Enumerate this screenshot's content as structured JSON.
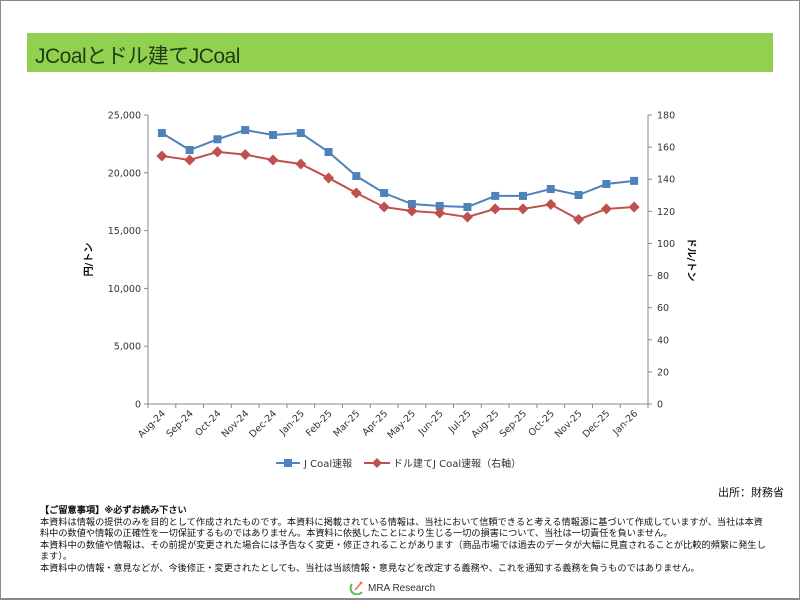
{
  "page": {
    "title": "JCoalとドル建てJCoal",
    "source": "出所：財務省",
    "notes": {
      "heading": "【ご留意事項】※必ずお読み下さい",
      "lines": [
        "本資料は情報の提供のみを目的として作成されたものです。本資料に掲載されている情報は、当社において信頼できると考える情報源に基づいて作成していますが、当社は本資料中の数値や情報の正確性を一切保証するものではありません。本資料に依拠したことにより生じる一切の損害について、当社は一切責任を負いません。",
        "本資料中の数値や情報は、その前提が変更された場合には予告なく変更・修正されることがあります（商品市場では過去のデータが大幅に見直されることが比較的頻繁に発生します）。",
        "本資料中の情報・意見などが、今後修正・変更されたとしても、当社は当該情報・意見などを改定する義務や、これを通知する義務を負うものではありません。"
      ]
    },
    "logo_text": "MRA Research"
  },
  "colors": {
    "title_bg": "#92d050",
    "series1": "#4f81bd",
    "series2": "#c0504d"
  },
  "chart_data": {
    "type": "line",
    "title": "JCoalとドル建てJCoal",
    "categories": [
      "Aug-24",
      "Sep-24",
      "Oct-24",
      "Nov-24",
      "Dec-24",
      "Jan-25",
      "Feb-25",
      "Mar-25",
      "Apr-25",
      "May-25",
      "Jun-25",
      "Jul-25",
      "Aug-25",
      "Sep-25",
      "Oct-25",
      "Nov-25",
      "Dec-25",
      "Jan-26"
    ],
    "ylabel": "円/トン",
    "y2label": "ドル/トン",
    "ylim": [
      0,
      25000
    ],
    "y2lim": [
      0,
      180
    ],
    "yticks": [
      "0",
      "5,000",
      "10,000",
      "15,000",
      "20,000",
      "25,000"
    ],
    "y2ticks": [
      "0",
      "20",
      "40",
      "60",
      "80",
      "100",
      "120",
      "140",
      "160",
      "180"
    ],
    "legend_position": "bottom",
    "series": [
      {
        "name": "J Coal速報",
        "axis": "left",
        "marker": "square",
        "values": [
          23440,
          21970,
          22900,
          23700,
          23270,
          23440,
          21800,
          19720,
          18250,
          17300,
          17130,
          17040,
          18000,
          18000,
          18600,
          18080,
          19030,
          19300
        ]
      },
      {
        "name": "ドル建てJ Coal速報（右軸）",
        "axis": "right",
        "marker": "diamond",
        "values": [
          154.5,
          152,
          157,
          155.3,
          152,
          149.5,
          140.8,
          131.4,
          122.7,
          120.2,
          119,
          116.5,
          121.5,
          121.5,
          124.3,
          114.9,
          121.5,
          122.7
        ]
      }
    ]
  }
}
